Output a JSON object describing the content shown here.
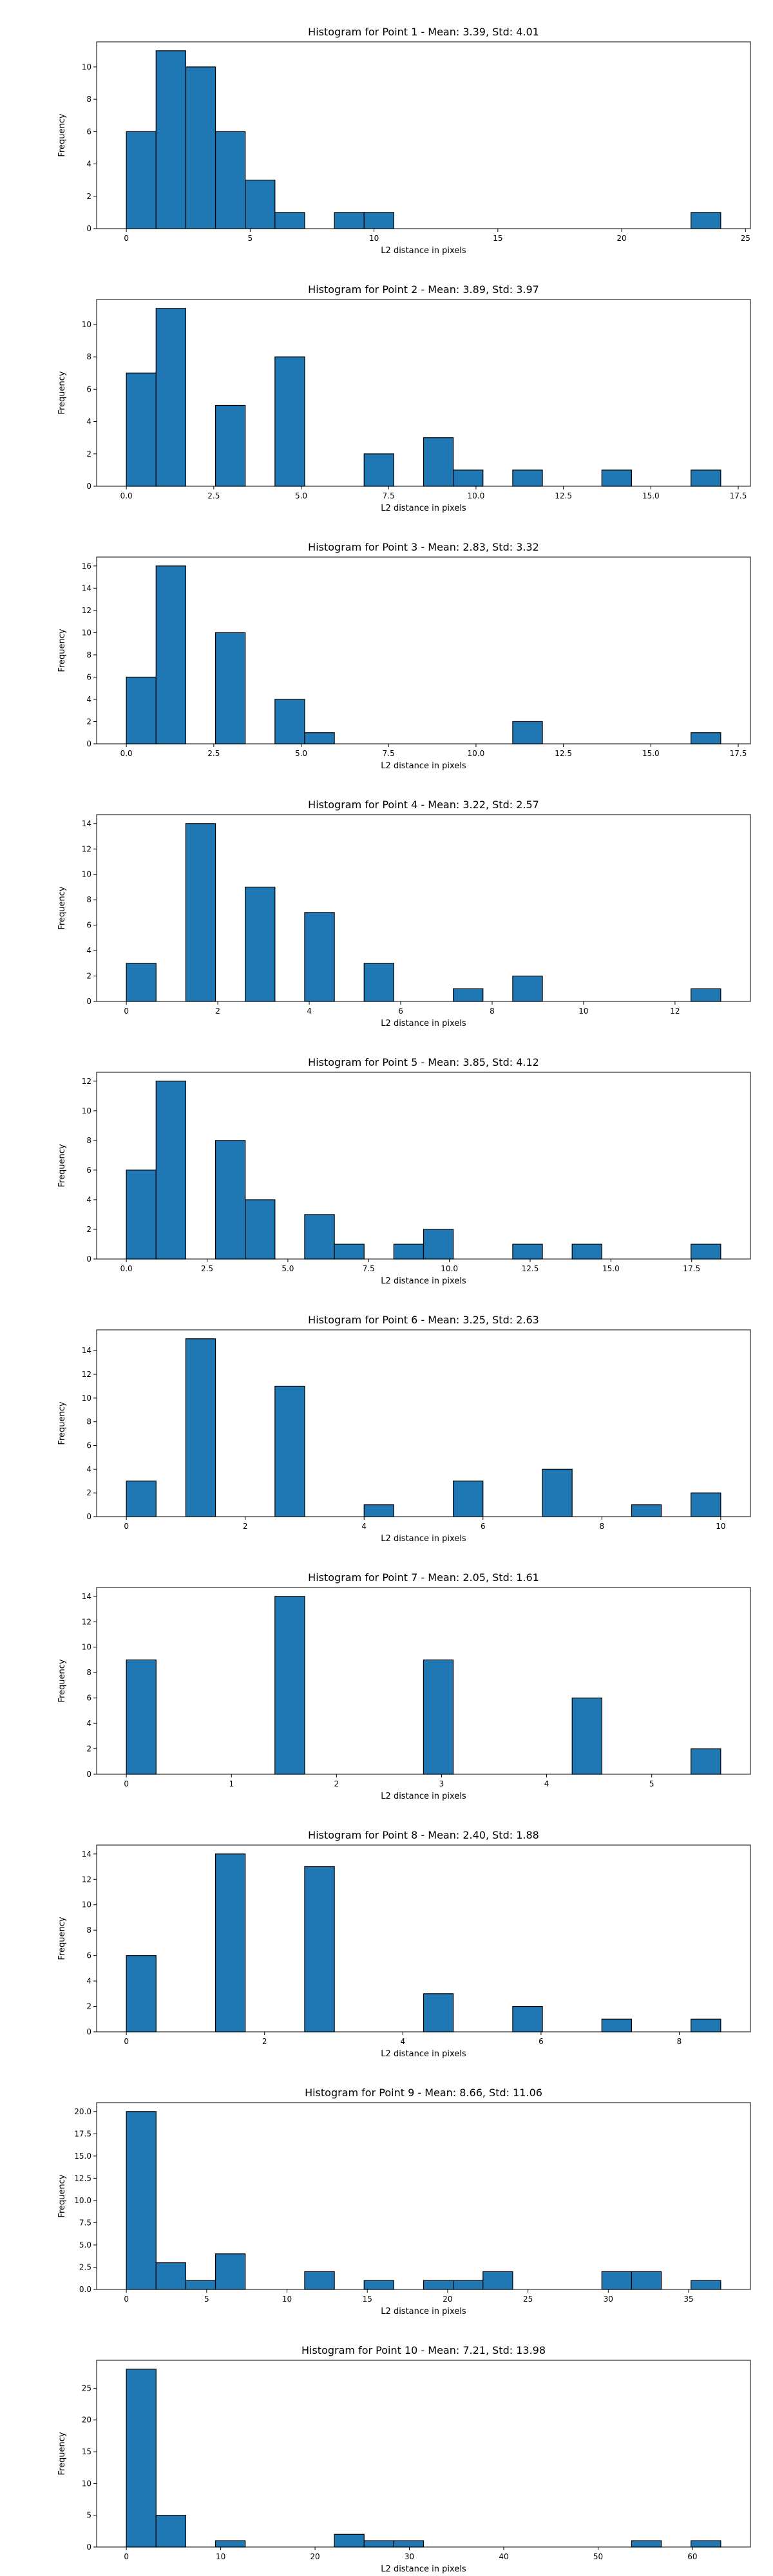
{
  "style": {
    "bar_color": "#1f77b4",
    "edge_color": "#000000"
  },
  "chart_data": [
    {
      "type": "bar",
      "title": "Histogram for Point 1 - Mean: 3.39, Std: 4.01",
      "xlabel": "L2 distance in pixels",
      "ylabel": "Frequency",
      "xlim": [
        -1.2,
        25.2
      ],
      "ylim": [
        0,
        11.55
      ],
      "xticks": [
        0,
        5,
        10,
        15,
        20,
        25
      ],
      "yticks": [
        0,
        2,
        4,
        6,
        8,
        10
      ],
      "grid": false,
      "bins": [
        {
          "x0": 0.0,
          "x1": 1.2,
          "count": 6
        },
        {
          "x0": 1.2,
          "x1": 2.4,
          "count": 11
        },
        {
          "x0": 2.4,
          "x1": 3.6,
          "count": 10
        },
        {
          "x0": 3.6,
          "x1": 4.8,
          "count": 6
        },
        {
          "x0": 4.8,
          "x1": 6.0,
          "count": 3
        },
        {
          "x0": 6.0,
          "x1": 7.2,
          "count": 1
        },
        {
          "x0": 8.4,
          "x1": 9.6,
          "count": 1
        },
        {
          "x0": 9.6,
          "x1": 10.8,
          "count": 1
        },
        {
          "x0": 22.8,
          "x1": 24.0,
          "count": 1
        }
      ]
    },
    {
      "type": "bar",
      "title": "Histogram for Point 2 - Mean: 3.89, Std: 3.97",
      "xlabel": "L2 distance in pixels",
      "ylabel": "Frequency",
      "xlim": [
        -0.85,
        17.85
      ],
      "ylim": [
        0,
        11.55
      ],
      "xticks": [
        0.0,
        2.5,
        5.0,
        7.5,
        10.0,
        12.5,
        15.0,
        17.5
      ],
      "yticks": [
        0,
        2,
        4,
        6,
        8,
        10
      ],
      "grid": false,
      "bins": [
        {
          "x0": 0.0,
          "x1": 0.85,
          "count": 7
        },
        {
          "x0": 0.85,
          "x1": 1.7,
          "count": 11
        },
        {
          "x0": 2.55,
          "x1": 3.4,
          "count": 5
        },
        {
          "x0": 4.25,
          "x1": 5.1,
          "count": 8
        },
        {
          "x0": 6.8,
          "x1": 7.65,
          "count": 2
        },
        {
          "x0": 8.5,
          "x1": 9.35,
          "count": 3
        },
        {
          "x0": 9.35,
          "x1": 10.2,
          "count": 1
        },
        {
          "x0": 11.05,
          "x1": 11.9,
          "count": 1
        },
        {
          "x0": 13.6,
          "x1": 14.45,
          "count": 1
        },
        {
          "x0": 16.15,
          "x1": 17.0,
          "count": 1
        }
      ]
    },
    {
      "type": "bar",
      "title": "Histogram for Point 3 - Mean: 2.83, Std: 3.32",
      "xlabel": "L2 distance in pixels",
      "ylabel": "Frequency",
      "xlim": [
        -0.85,
        17.85
      ],
      "ylim": [
        0,
        16.8
      ],
      "xticks": [
        0.0,
        2.5,
        5.0,
        7.5,
        10.0,
        12.5,
        15.0,
        17.5
      ],
      "yticks": [
        0,
        2,
        4,
        6,
        8,
        10,
        12,
        14,
        16
      ],
      "grid": false,
      "bins": [
        {
          "x0": 0.0,
          "x1": 0.85,
          "count": 6
        },
        {
          "x0": 0.85,
          "x1": 1.7,
          "count": 16
        },
        {
          "x0": 2.55,
          "x1": 3.4,
          "count": 10
        },
        {
          "x0": 4.25,
          "x1": 5.1,
          "count": 4
        },
        {
          "x0": 5.1,
          "x1": 5.95,
          "count": 1
        },
        {
          "x0": 11.05,
          "x1": 11.9,
          "count": 2
        },
        {
          "x0": 16.15,
          "x1": 17.0,
          "count": 1
        }
      ]
    },
    {
      "type": "bar",
      "title": "Histogram for Point 4 - Mean: 3.22, Std: 2.57",
      "xlabel": "L2 distance in pixels",
      "ylabel": "Frequency",
      "xlim": [
        -0.65,
        13.65
      ],
      "ylim": [
        0,
        14.7
      ],
      "xticks": [
        0,
        2,
        4,
        6,
        8,
        10,
        12
      ],
      "yticks": [
        0,
        2,
        4,
        6,
        8,
        10,
        12,
        14
      ],
      "grid": false,
      "bins": [
        {
          "x0": 0.0,
          "x1": 0.65,
          "count": 3
        },
        {
          "x0": 1.3,
          "x1": 1.95,
          "count": 14
        },
        {
          "x0": 2.6,
          "x1": 3.25,
          "count": 9
        },
        {
          "x0": 3.9,
          "x1": 4.55,
          "count": 7
        },
        {
          "x0": 5.2,
          "x1": 5.85,
          "count": 3
        },
        {
          "x0": 7.15,
          "x1": 7.8,
          "count": 1
        },
        {
          "x0": 8.45,
          "x1": 9.1,
          "count": 2
        },
        {
          "x0": 12.35,
          "x1": 13.0,
          "count": 1
        }
      ]
    },
    {
      "type": "bar",
      "title": "Histogram for Point 5 - Mean: 3.85, Std: 4.12",
      "xlabel": "L2 distance in pixels",
      "ylabel": "Frequency",
      "xlim": [
        -0.92,
        19.32
      ],
      "ylim": [
        0,
        12.6
      ],
      "xticks": [
        0.0,
        2.5,
        5.0,
        7.5,
        10.0,
        12.5,
        15.0,
        17.5
      ],
      "yticks": [
        0,
        2,
        4,
        6,
        8,
        10,
        12
      ],
      "grid": false,
      "bins": [
        {
          "x0": 0.0,
          "x1": 0.92,
          "count": 6
        },
        {
          "x0": 0.92,
          "x1": 1.84,
          "count": 12
        },
        {
          "x0": 2.76,
          "x1": 3.68,
          "count": 8
        },
        {
          "x0": 3.68,
          "x1": 4.6,
          "count": 4
        },
        {
          "x0": 5.52,
          "x1": 6.44,
          "count": 3
        },
        {
          "x0": 6.44,
          "x1": 7.36,
          "count": 1
        },
        {
          "x0": 8.28,
          "x1": 9.2,
          "count": 1
        },
        {
          "x0": 9.2,
          "x1": 10.12,
          "count": 2
        },
        {
          "x0": 11.96,
          "x1": 12.88,
          "count": 1
        },
        {
          "x0": 13.8,
          "x1": 14.72,
          "count": 1
        },
        {
          "x0": 17.48,
          "x1": 18.4,
          "count": 1
        }
      ]
    },
    {
      "type": "bar",
      "title": "Histogram for Point 6 - Mean: 3.25, Std: 2.63",
      "xlabel": "L2 distance in pixels",
      "ylabel": "Frequency",
      "xlim": [
        -0.5,
        10.5
      ],
      "ylim": [
        0,
        15.75
      ],
      "xticks": [
        0,
        2,
        4,
        6,
        8,
        10
      ],
      "yticks": [
        0,
        2,
        4,
        6,
        8,
        10,
        12,
        14
      ],
      "grid": false,
      "bins": [
        {
          "x0": 0.0,
          "x1": 0.5,
          "count": 3
        },
        {
          "x0": 1.0,
          "x1": 1.5,
          "count": 15
        },
        {
          "x0": 2.5,
          "x1": 3.0,
          "count": 11
        },
        {
          "x0": 4.0,
          "x1": 4.5,
          "count": 1
        },
        {
          "x0": 5.5,
          "x1": 6.0,
          "count": 3
        },
        {
          "x0": 7.0,
          "x1": 7.5,
          "count": 4
        },
        {
          "x0": 8.5,
          "x1": 9.0,
          "count": 1
        },
        {
          "x0": 9.5,
          "x1": 10.0,
          "count": 2
        }
      ]
    },
    {
      "type": "bar",
      "title": "Histogram for Point 7 - Mean: 2.05, Std: 1.61",
      "xlabel": "L2 distance in pixels",
      "ylabel": "Frequency",
      "xlim": [
        -0.283,
        5.94
      ],
      "ylim": [
        0,
        14.7
      ],
      "xticks": [
        0,
        1,
        2,
        3,
        4,
        5
      ],
      "yticks": [
        0,
        2,
        4,
        6,
        8,
        10,
        12,
        14
      ],
      "grid": false,
      "bins": [
        {
          "x0": 0.0,
          "x1": 0.283,
          "count": 9
        },
        {
          "x0": 1.414,
          "x1": 1.697,
          "count": 14
        },
        {
          "x0": 2.828,
          "x1": 3.111,
          "count": 9
        },
        {
          "x0": 4.243,
          "x1": 4.526,
          "count": 6
        },
        {
          "x0": 5.374,
          "x1": 5.657,
          "count": 2
        }
      ]
    },
    {
      "type": "bar",
      "title": "Histogram for Point 8 - Mean: 2.40, Std: 1.88",
      "xlabel": "L2 distance in pixels",
      "ylabel": "Frequency",
      "xlim": [
        -0.43,
        9.03
      ],
      "ylim": [
        0,
        14.7
      ],
      "xticks": [
        0,
        2,
        4,
        6,
        8
      ],
      "yticks": [
        0,
        2,
        4,
        6,
        8,
        10,
        12,
        14
      ],
      "grid": false,
      "bins": [
        {
          "x0": 0.0,
          "x1": 0.43,
          "count": 6
        },
        {
          "x0": 1.29,
          "x1": 1.72,
          "count": 14
        },
        {
          "x0": 2.58,
          "x1": 3.01,
          "count": 13
        },
        {
          "x0": 4.3,
          "x1": 4.73,
          "count": 3
        },
        {
          "x0": 5.59,
          "x1": 6.02,
          "count": 2
        },
        {
          "x0": 6.88,
          "x1": 7.31,
          "count": 1
        },
        {
          "x0": 8.17,
          "x1": 8.6,
          "count": 1
        }
      ]
    },
    {
      "type": "bar",
      "title": "Histogram for Point 9 - Mean: 8.66, Std: 11.06",
      "xlabel": "L2 distance in pixels",
      "ylabel": "Frequency",
      "xlim": [
        -1.85,
        38.85
      ],
      "ylim": [
        0,
        21.0
      ],
      "xticks": [
        0,
        5,
        10,
        15,
        20,
        25,
        30,
        35
      ],
      "yticks": [
        0.0,
        2.5,
        5.0,
        7.5,
        10.0,
        12.5,
        15.0,
        17.5,
        20.0
      ],
      "grid": false,
      "bins": [
        {
          "x0": 0.0,
          "x1": 1.85,
          "count": 20
        },
        {
          "x0": 1.85,
          "x1": 3.7,
          "count": 3
        },
        {
          "x0": 3.7,
          "x1": 5.55,
          "count": 1
        },
        {
          "x0": 5.55,
          "x1": 7.4,
          "count": 4
        },
        {
          "x0": 11.1,
          "x1": 12.95,
          "count": 2
        },
        {
          "x0": 14.8,
          "x1": 16.65,
          "count": 1
        },
        {
          "x0": 18.5,
          "x1": 20.35,
          "count": 1
        },
        {
          "x0": 20.35,
          "x1": 22.2,
          "count": 1
        },
        {
          "x0": 22.2,
          "x1": 24.05,
          "count": 2
        },
        {
          "x0": 29.6,
          "x1": 31.45,
          "count": 2
        },
        {
          "x0": 31.45,
          "x1": 33.3,
          "count": 2
        },
        {
          "x0": 35.15,
          "x1": 37.0,
          "count": 1
        }
      ]
    },
    {
      "type": "bar",
      "title": "Histogram for Point 10 - Mean: 7.21, Std: 13.98",
      "xlabel": "L2 distance in pixels",
      "ylabel": "Frequency",
      "xlim": [
        -3.15,
        66.15
      ],
      "ylim": [
        0,
        29.4
      ],
      "xticks": [
        0,
        10,
        20,
        30,
        40,
        50,
        60
      ],
      "yticks": [
        0,
        5,
        10,
        15,
        20,
        25
      ],
      "grid": false,
      "bins": [
        {
          "x0": 0.0,
          "x1": 3.15,
          "count": 28
        },
        {
          "x0": 3.15,
          "x1": 6.3,
          "count": 5
        },
        {
          "x0": 9.45,
          "x1": 12.6,
          "count": 1
        },
        {
          "x0": 22.05,
          "x1": 25.2,
          "count": 2
        },
        {
          "x0": 25.2,
          "x1": 28.35,
          "count": 1
        },
        {
          "x0": 28.35,
          "x1": 31.5,
          "count": 1
        },
        {
          "x0": 53.55,
          "x1": 56.7,
          "count": 1
        },
        {
          "x0": 59.85,
          "x1": 63.0,
          "count": 1
        }
      ]
    }
  ]
}
